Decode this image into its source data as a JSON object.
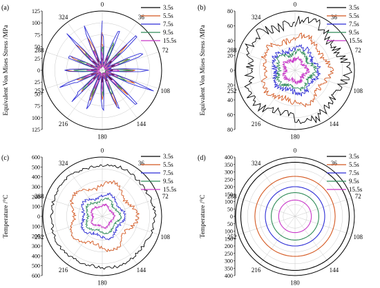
{
  "chart_data": [
    {
      "type": "polar-line",
      "panel_label": "(a)",
      "ylabel": "Equivalent Von Mises Stress /MPa",
      "theta_ticks": [
        "0",
        "36",
        "72",
        "108",
        "144",
        "180",
        "216",
        "252",
        "288",
        "324"
      ],
      "r_ticks": [
        "125",
        "120",
        "115",
        "110",
        "105",
        "100",
        "95",
        "90",
        "85",
        "80",
        "75",
        "70",
        "65",
        "60",
        "55",
        "50",
        "45",
        "40",
        "35",
        "30",
        "25",
        "20",
        "15",
        "10",
        "5",
        "0"
      ],
      "r_tick_display": [
        "125",
        "100",
        "75",
        "50",
        "25",
        "0",
        "25",
        "50",
        "75",
        "100",
        "125"
      ],
      "rmax": 125,
      "legend": [
        "3.5s",
        "5.5s",
        "7.5s",
        "9.5s",
        "15.5s"
      ],
      "series": [
        {
          "name": "3.5s",
          "color": "#000000",
          "profile": "star",
          "base": 8,
          "amp": 22,
          "lobes": 16,
          "noise": 6
        },
        {
          "name": "5.5s",
          "color": "#d4561e",
          "profile": "star",
          "base": 12,
          "amp": 70,
          "lobes": 16,
          "noise": 10
        },
        {
          "name": "7.5s",
          "color": "#2b2bd6",
          "profile": "star",
          "base": 14,
          "amp": 100,
          "lobes": 16,
          "noise": 12
        },
        {
          "name": "9.5s",
          "color": "#2e8b57",
          "profile": "star",
          "base": 10,
          "amp": 55,
          "lobes": 16,
          "noise": 8
        },
        {
          "name": "15.5s",
          "color": "#c837c8",
          "profile": "star",
          "base": 8,
          "amp": 40,
          "lobes": 16,
          "noise": 6
        }
      ]
    },
    {
      "type": "polar-line",
      "panel_label": "(b)",
      "ylabel": "Equivalent Von Mises Stress /MPa",
      "theta_ticks": [
        "0",
        "36",
        "72",
        "108",
        "144",
        "180",
        "216",
        "252",
        "288",
        "324"
      ],
      "r_tick_display": [
        "80",
        "60",
        "40",
        "20",
        "0",
        "20",
        "40",
        "60",
        "80"
      ],
      "rmax": 80,
      "legend": [
        "3.5s",
        "5.5s",
        "7.5s",
        "9.5s",
        "15.5s"
      ],
      "series": [
        {
          "name": "3.5s",
          "color": "#000000",
          "profile": "rough",
          "base": 66,
          "noise": 7,
          "lobes": 5,
          "amp": 5
        },
        {
          "name": "5.5s",
          "color": "#d4561e",
          "profile": "rough",
          "base": 44,
          "noise": 4,
          "lobes": 5,
          "amp": 4
        },
        {
          "name": "7.5s",
          "color": "#2b2bd6",
          "profile": "rough",
          "base": 30,
          "noise": 4,
          "lobes": 5,
          "amp": 3
        },
        {
          "name": "9.5s",
          "color": "#2e8b57",
          "profile": "rough",
          "base": 24,
          "noise": 3,
          "lobes": 5,
          "amp": 3
        },
        {
          "name": "15.5s",
          "color": "#c837c8",
          "profile": "rough",
          "base": 15,
          "noise": 3,
          "lobes": 5,
          "amp": 2
        }
      ]
    },
    {
      "type": "polar-line",
      "panel_label": "(c)",
      "ylabel": "Temperature /°C",
      "theta_ticks": [
        "0",
        "36",
        "72",
        "108",
        "144",
        "180",
        "216",
        "252",
        "288",
        "324"
      ],
      "r_tick_display": [
        "600",
        "500",
        "400",
        "300",
        "200",
        "100",
        "0",
        "100",
        "200",
        "300",
        "400",
        "500",
        "600"
      ],
      "rmax": 600,
      "legend": [
        "3.5s",
        "5.5s",
        "7.5s",
        "9.5s",
        "15.5s"
      ],
      "series": [
        {
          "name": "3.5s",
          "color": "#000000",
          "profile": "rough",
          "base": 520,
          "noise": 15,
          "lobes": 5,
          "amp": 10
        },
        {
          "name": "5.5s",
          "color": "#d4561e",
          "profile": "rough",
          "base": 320,
          "noise": 20,
          "lobes": 5,
          "amp": 40
        },
        {
          "name": "7.5s",
          "color": "#2b2bd6",
          "profile": "rough",
          "base": 210,
          "noise": 15,
          "lobes": 5,
          "amp": 25
        },
        {
          "name": "9.5s",
          "color": "#2e8b57",
          "profile": "rough",
          "base": 165,
          "noise": 12,
          "lobes": 5,
          "amp": 20
        },
        {
          "name": "15.5s",
          "color": "#c837c8",
          "profile": "rough",
          "base": 110,
          "noise": 10,
          "lobes": 5,
          "amp": 12
        }
      ]
    },
    {
      "type": "polar-line",
      "panel_label": "(d)",
      "ylabel": "Temperature /°C",
      "theta_ticks": [
        "0",
        "36",
        "72",
        "108",
        "144",
        "180",
        "216",
        "252",
        "288",
        "324"
      ],
      "r_tick_display": [
        "400",
        "350",
        "300",
        "250",
        "200",
        "150",
        "100",
        "50",
        "0",
        "50",
        "100",
        "150",
        "200",
        "250",
        "300",
        "350",
        "400"
      ],
      "rmax": 400,
      "legend": [
        "3.5s",
        "5.5s",
        "7.5s",
        "9.5s",
        "15.5s"
      ],
      "series": [
        {
          "name": "3.5s",
          "color": "#000000",
          "profile": "circle",
          "base": 365
        },
        {
          "name": "5.5s",
          "color": "#d4561e",
          "profile": "circle",
          "base": 270
        },
        {
          "name": "7.5s",
          "color": "#2b2bd6",
          "profile": "circle",
          "base": 200
        },
        {
          "name": "9.5s",
          "color": "#2e8b57",
          "profile": "circle",
          "base": 160
        },
        {
          "name": "15.5s",
          "color": "#c837c8",
          "profile": "circle",
          "base": 110
        }
      ]
    }
  ]
}
